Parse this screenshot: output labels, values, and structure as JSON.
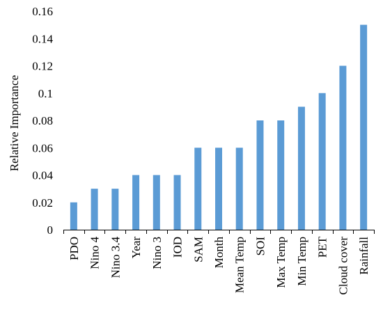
{
  "chart_data": {
    "type": "bar",
    "title": "",
    "xlabel": "",
    "ylabel": "Relative Importance",
    "ylim": [
      0,
      0.16
    ],
    "yticks": [
      "0",
      "0.02",
      "0.04",
      "0.06",
      "0.08",
      "0.1",
      "0.12",
      "0.14",
      "0.16"
    ],
    "categories": [
      "PDO",
      "Nino 4",
      "Nino 3.4",
      "Year",
      "Nino 3",
      "IOD",
      "SAM",
      "Month",
      "Mean Temp",
      "SOI",
      "Max Temp",
      "Min Temp",
      "PET",
      "Cloud cover",
      "Rainfall"
    ],
    "values": [
      0.02,
      0.03,
      0.03,
      0.04,
      0.04,
      0.04,
      0.06,
      0.06,
      0.06,
      0.08,
      0.08,
      0.09,
      0.1,
      0.12,
      0.15
    ],
    "grid": false,
    "legend": "none",
    "bar_color": "#5B9BD5"
  }
}
